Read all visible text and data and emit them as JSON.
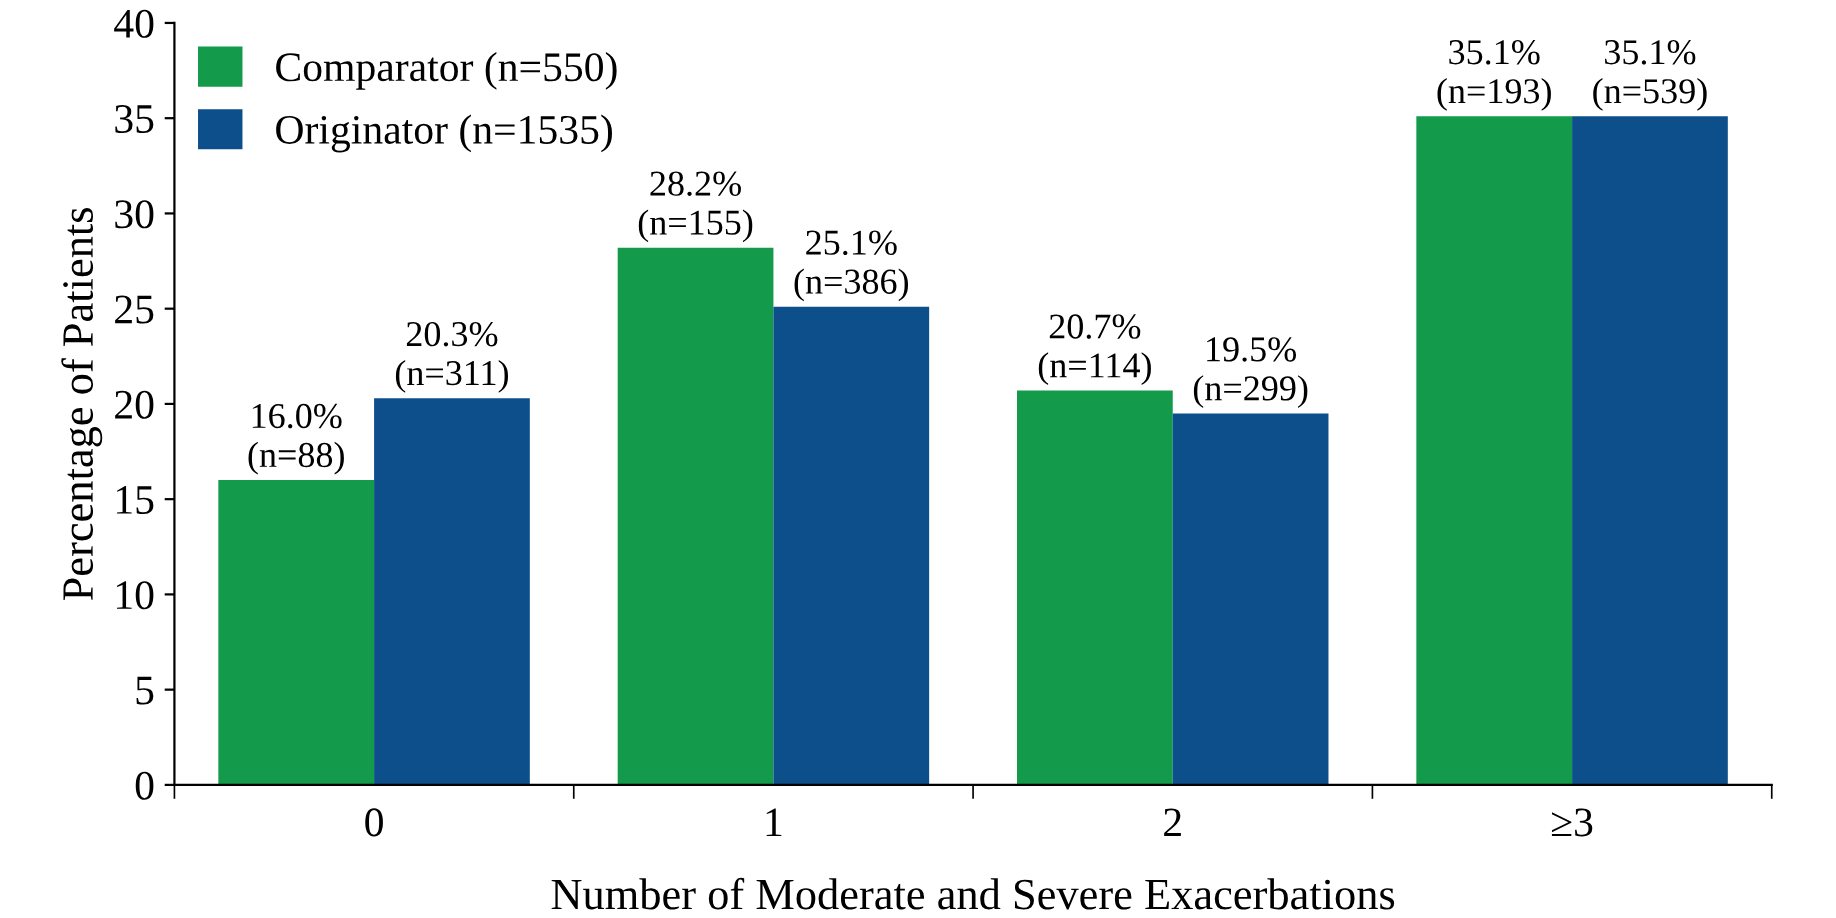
{
  "chart_data": {
    "type": "bar",
    "xlabel": "Number of Moderate and Severe Exacerbations",
    "ylabel": "Percentage of Patients",
    "categories": [
      "0",
      "1",
      "2",
      "≥3"
    ],
    "series": [
      {
        "name": "Comparator (n=550)",
        "color": "#139a4a",
        "values": [
          16.0,
          28.2,
          20.7,
          35.1
        ],
        "value_labels": [
          "16.0%\n(n=88)",
          "28.2%\n(n=155)",
          "20.7%\n(n=114)",
          "35.1%\n(n=193)"
        ]
      },
      {
        "name": "Originator (n=1535)",
        "color": "#0d4f8b",
        "values": [
          20.3,
          25.1,
          19.5,
          35.1
        ],
        "value_labels": [
          "20.3%\n(n=311)",
          "25.1%\n(n=386)",
          "19.5%\n(n=299)",
          "35.1%\n(n=539)"
        ]
      }
    ],
    "ylim": [
      0,
      40
    ],
    "yticks": [
      0,
      5,
      10,
      15,
      20,
      25,
      30,
      35,
      40
    ],
    "grid": false,
    "legend": "top left"
  }
}
